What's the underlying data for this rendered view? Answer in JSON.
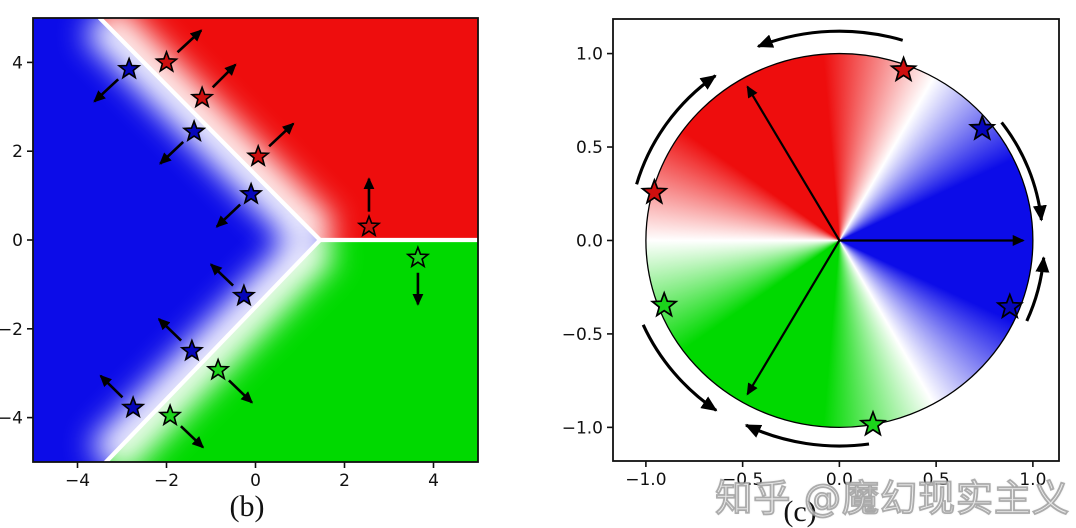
{
  "figure": {
    "background": "#ffffff",
    "watermark": "知乎 @魔幻现实主义"
  },
  "colors": {
    "region_red": "#ee0d0d",
    "region_blue": "#0c0ce8",
    "region_green": "#00d900",
    "star_red": "#cf0f0f",
    "star_blue": "#0606bb",
    "star_green": "#1bd41b",
    "boundary_white": "#ffffff",
    "arrow_black": "#000000",
    "axis_black": "#111111"
  },
  "chart_data": [
    {
      "panel": "b",
      "caption": "(b)",
      "type": "heatmap",
      "subtype": "decision-boundary-map",
      "xlim": [
        -5,
        5
      ],
      "ylim": [
        -5,
        5
      ],
      "grid": false,
      "xticks": [
        {
          "v": -4,
          "label": "−4"
        },
        {
          "v": -2,
          "label": "−2"
        },
        {
          "v": 0,
          "label": "0"
        },
        {
          "v": 2,
          "label": "2"
        },
        {
          "v": 4,
          "label": "4"
        }
      ],
      "yticks": [
        {
          "v": 4,
          "label": "4"
        },
        {
          "v": 2,
          "label": "2"
        },
        {
          "v": 0,
          "label": "0"
        },
        {
          "v": -2,
          "label": "−2"
        },
        {
          "v": -4,
          "label": "−4"
        }
      ],
      "decision_point": [
        1.45,
        0.0
      ],
      "boundaries": [
        {
          "name": "blue-red",
          "to": [
            -3.5,
            5
          ]
        },
        {
          "name": "red-green",
          "to": [
            5,
            0.0
          ]
        },
        {
          "name": "blue-green",
          "to": [
            -3.36,
            -5
          ]
        }
      ],
      "regions": [
        {
          "name": "blue",
          "location": "left"
        },
        {
          "name": "red",
          "location": "upper-right"
        },
        {
          "name": "green",
          "location": "lower-right"
        }
      ],
      "stars": [
        {
          "x": -2.84,
          "y": 3.85,
          "color": "blue",
          "arrow_to": [
            -3.62,
            3.12
          ]
        },
        {
          "x": -2.0,
          "y": 4.0,
          "color": "red",
          "arrow_to": [
            -1.22,
            4.72
          ]
        },
        {
          "x": -1.2,
          "y": 3.2,
          "color": "red",
          "arrow_to": [
            -0.45,
            3.95
          ]
        },
        {
          "x": -1.38,
          "y": 2.44,
          "color": "blue",
          "arrow_to": [
            -2.14,
            1.72
          ]
        },
        {
          "x": 0.06,
          "y": 1.88,
          "color": "red",
          "arrow_to": [
            0.85,
            2.62
          ]
        },
        {
          "x": -0.1,
          "y": 1.03,
          "color": "blue",
          "arrow_to": [
            -0.87,
            0.3
          ]
        },
        {
          "x": 2.55,
          "y": 0.3,
          "color": "red",
          "arrow_to": [
            2.55,
            1.38
          ]
        },
        {
          "x": 3.65,
          "y": -0.4,
          "color": "green",
          "arrow_to": [
            3.65,
            -1.45
          ]
        },
        {
          "x": -0.26,
          "y": -1.26,
          "color": "blue",
          "arrow_to": [
            -1.0,
            -0.55
          ]
        },
        {
          "x": -1.43,
          "y": -2.5,
          "color": "blue",
          "arrow_to": [
            -2.17,
            -1.78
          ]
        },
        {
          "x": -0.84,
          "y": -2.93,
          "color": "green",
          "arrow_to": [
            -0.08,
            -3.66
          ]
        },
        {
          "x": -2.75,
          "y": -3.78,
          "color": "blue",
          "arrow_to": [
            -3.48,
            -3.06
          ]
        },
        {
          "x": -1.92,
          "y": -3.96,
          "color": "green",
          "arrow_to": [
            -1.18,
            -4.67
          ]
        }
      ]
    },
    {
      "panel": "c",
      "caption": "(c)",
      "type": "heatmap",
      "subtype": "angular-color-wheel",
      "xlim": [
        -1.17,
        1.135
      ],
      "ylim": [
        -1.18,
        1.185
      ],
      "grid": false,
      "xticks": [
        {
          "v": -1.0,
          "label": "−1.0"
        },
        {
          "v": -0.5,
          "label": "−0.5"
        },
        {
          "v": 0.0,
          "label": "0.0"
        },
        {
          "v": 0.5,
          "label": "0.5"
        },
        {
          "v": 1.0,
          "label": "1.0"
        }
      ],
      "yticks": [
        {
          "v": 1.0,
          "label": "1.0"
        },
        {
          "v": 0.5,
          "label": "0.5"
        },
        {
          "v": 0.0,
          "label": "0.0"
        },
        {
          "v": -0.5,
          "label": "−0.5"
        },
        {
          "v": -1.0,
          "label": "−1.0"
        }
      ],
      "circle_radius": 1.0,
      "white_boundary_angles_deg": [
        60,
        180,
        300
      ],
      "prototype_arrows": [
        {
          "angle_deg": 120,
          "class": "red",
          "length": 0.95
        },
        {
          "angle_deg": 0,
          "class": "blue",
          "length": 0.95
        },
        {
          "angle_deg": 240,
          "class": "green",
          "length": 0.95
        }
      ],
      "stars": [
        {
          "angle_deg": 70,
          "radius": 0.97,
          "color": "red"
        },
        {
          "angle_deg": 39,
          "radius": 0.95,
          "color": "blue"
        },
        {
          "angle_deg": 165,
          "radius": 0.99,
          "color": "red"
        },
        {
          "angle_deg": -22,
          "radius": 0.95,
          "color": "blue"
        },
        {
          "angle_deg": 201,
          "radius": 0.97,
          "color": "green"
        },
        {
          "angle_deg": 280,
          "radius": 1.0,
          "color": "green"
        }
      ],
      "flow_arrows": [
        {
          "from_deg": 73,
          "to_deg": 112,
          "radius": 1.12
        },
        {
          "from_deg": 164,
          "to_deg": 126,
          "radius": 1.09
        },
        {
          "from_deg": 37,
          "to_deg": 6,
          "radius": 1.05
        },
        {
          "from_deg": -24,
          "to_deg": -5,
          "radius": 1.06
        },
        {
          "from_deg": 204,
          "to_deg": 235,
          "radius": 1.11
        },
        {
          "from_deg": 278,
          "to_deg": 244,
          "radius": 1.1
        }
      ]
    }
  ]
}
